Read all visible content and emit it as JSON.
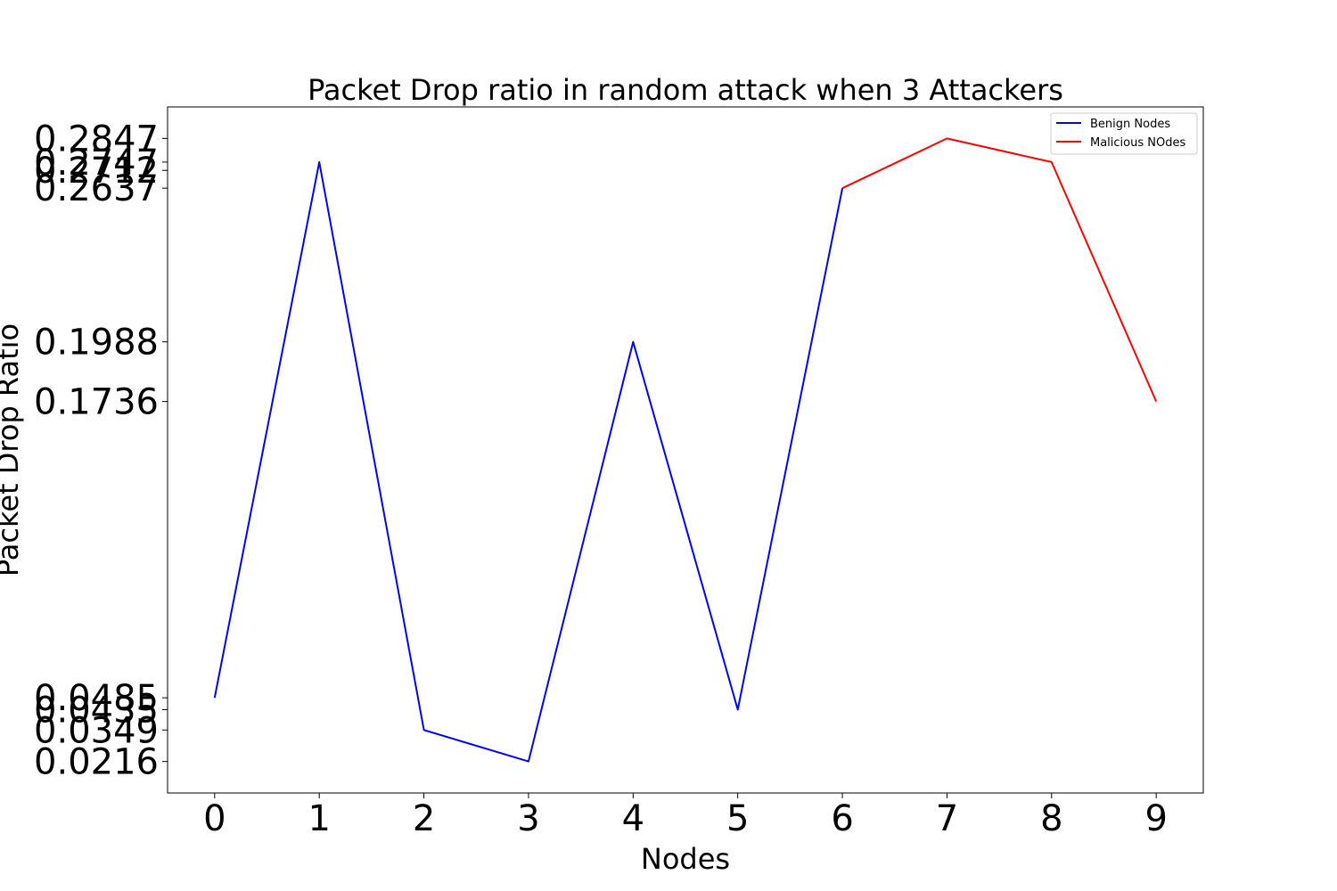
{
  "chart_data": {
    "type": "line",
    "title": "Packet Drop ratio in random attack when 3 Attackers",
    "xlabel": "Nodes",
    "ylabel": "Packet Drop Ratio",
    "x": [
      0,
      1,
      2,
      3,
      4,
      5,
      6,
      7,
      8,
      9
    ],
    "x_ticks": [
      "0",
      "1",
      "2",
      "3",
      "4",
      "5",
      "6",
      "7",
      "8",
      "9"
    ],
    "y_ticks": [
      "0.0216",
      "0.0349",
      "0.0435",
      "0.0485",
      "0.1736",
      "0.1988",
      "0.2637",
      "0.2712",
      "0.2747",
      "0.2847"
    ],
    "xlim": [
      -0.45,
      9.45
    ],
    "ylim": [
      0.0083,
      0.298
    ],
    "grid": false,
    "legend_position": "upper-right",
    "series": [
      {
        "name": "Benign Nodes",
        "color": "#0000ff",
        "x": [
          0,
          1,
          2,
          3,
          4,
          5,
          6
        ],
        "values": [
          0.0485,
          0.2747,
          0.0349,
          0.0216,
          0.1988,
          0.0435,
          0.2637
        ]
      },
      {
        "name": "Malicious NOdes",
        "color": "#ff0000",
        "x": [
          6,
          7,
          8,
          9
        ],
        "values": [
          0.2637,
          0.2847,
          0.2747,
          0.1736
        ]
      }
    ]
  }
}
